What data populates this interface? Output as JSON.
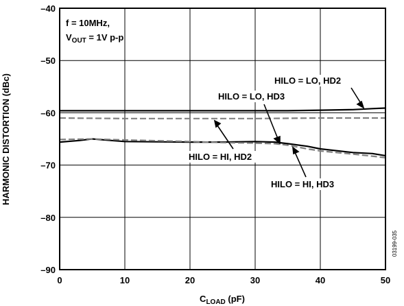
{
  "chart_data": {
    "type": "line",
    "xlabel": {
      "main": "C",
      "sub": "LOAD",
      "unit": " (pF)"
    },
    "ylabel": "HARMONIC DISTORTION (dBc)",
    "xlim": [
      0,
      50
    ],
    "ylim": [
      -90,
      -40
    ],
    "xticks": [
      0,
      10,
      20,
      30,
      40,
      50
    ],
    "yticks": [
      -90,
      -80,
      -70,
      -60,
      -50,
      -40
    ],
    "grid": true,
    "condition": {
      "line1": "f = 10MHz,",
      "line2_main": "V",
      "line2_sub": "OUT",
      "line2_rest": " = 1V p-p"
    },
    "figure_id": "03199-035",
    "series": [
      {
        "name": "HILO = LO, HD2",
        "style": "solid",
        "color": "#000000",
        "x": [
          0,
          10,
          20,
          30,
          35,
          40,
          45,
          48,
          50
        ],
        "y": [
          -59.6,
          -59.6,
          -59.6,
          -59.6,
          -59.6,
          -59.5,
          -59.4,
          -59.2,
          -59.1
        ]
      },
      {
        "name": "HILO = LO, HD3",
        "style": "dashed",
        "color": "#808080",
        "x": [
          0,
          10,
          20,
          30,
          40,
          50
        ],
        "y": [
          -61.0,
          -61.1,
          -61.1,
          -61.1,
          -61.0,
          -61.0
        ]
      },
      {
        "name": "HILO = HI, HD2",
        "style": "solid",
        "color": "#000000",
        "x": [
          0,
          3,
          5,
          8,
          10,
          20,
          25,
          30,
          33,
          35,
          38,
          40,
          45,
          48,
          50
        ],
        "y": [
          -65.6,
          -65.3,
          -65.0,
          -65.3,
          -65.5,
          -65.6,
          -65.6,
          -65.5,
          -65.6,
          -65.9,
          -66.4,
          -66.9,
          -67.6,
          -67.8,
          -68.2
        ]
      },
      {
        "name": "HILO = HI, HD3",
        "style": "dashed",
        "color": "#808080",
        "x": [
          0,
          5,
          10,
          20,
          25,
          30,
          33,
          35,
          38,
          40,
          45,
          48,
          50
        ],
        "y": [
          -65.1,
          -65.0,
          -65.2,
          -65.5,
          -65.7,
          -65.8,
          -65.9,
          -66.2,
          -66.9,
          -67.3,
          -67.9,
          -68.3,
          -68.6
        ]
      }
    ],
    "annotations": [
      {
        "text": "HILO = LO, HD2",
        "series": 0
      },
      {
        "text": "HILO = LO, HD3",
        "series": 1
      },
      {
        "text": "HILO = HI, HD2",
        "series": 2
      },
      {
        "text": "HILO = HI, HD3",
        "series": 3
      }
    ]
  }
}
